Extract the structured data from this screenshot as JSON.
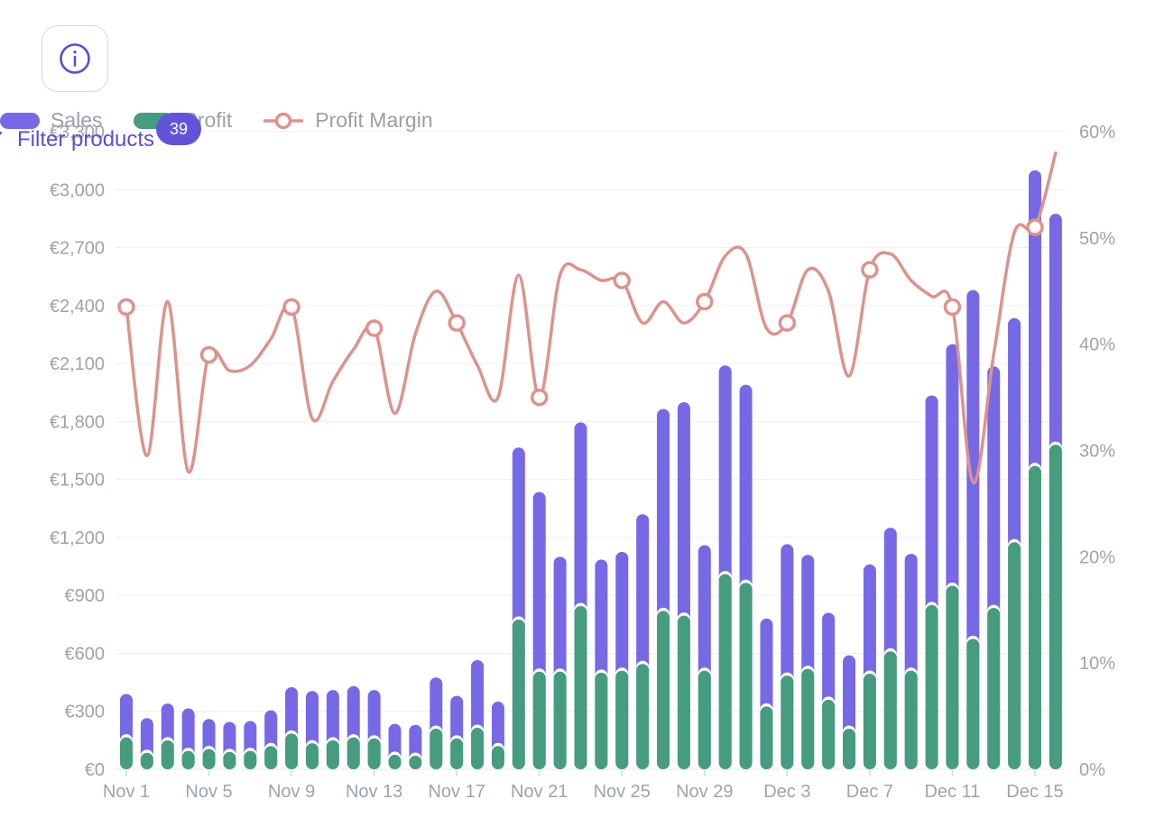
{
  "header": {
    "info_button": {
      "icon": "info-icon"
    },
    "legend": {
      "items": [
        {
          "label": "Sales",
          "color": "#7768e6",
          "swatch": "bar"
        },
        {
          "label": "Profit",
          "color": "#469c7e",
          "swatch": "bar"
        },
        {
          "label": "Profit Margin",
          "color": "#dc938d",
          "swatch": "line-marker"
        }
      ]
    },
    "filter": {
      "icon": "funnel-icon",
      "label": "Filter products",
      "badge_count": "39",
      "accent_color": "#5a4dd4",
      "badge_color": "#6254d8"
    }
  },
  "chart_data": {
    "type": "bar+line",
    "title": "",
    "x": [
      "Nov 1",
      "Nov 2",
      "Nov 3",
      "Nov 4",
      "Nov 5",
      "Nov 6",
      "Nov 7",
      "Nov 8",
      "Nov 9",
      "Nov 10",
      "Nov 11",
      "Nov 12",
      "Nov 13",
      "Nov 14",
      "Nov 15",
      "Nov 16",
      "Nov 17",
      "Nov 18",
      "Nov 19",
      "Nov 20",
      "Nov 21",
      "Nov 22",
      "Nov 23",
      "Nov 24",
      "Nov 25",
      "Nov 26",
      "Nov 27",
      "Nov 28",
      "Nov 29",
      "Nov 30",
      "Dec 1",
      "Dec 2",
      "Dec 3",
      "Dec 4",
      "Dec 5",
      "Dec 6",
      "Dec 7",
      "Dec 8",
      "Dec 9",
      "Dec 10",
      "Dec 11",
      "Dec 12",
      "Dec 13",
      "Dec 14",
      "Dec 15",
      "Dec 16"
    ],
    "x_label_every": 4,
    "series": [
      {
        "name": "Sales",
        "type": "bar",
        "axis": "left",
        "unit": "EUR",
        "color": "#7768e6",
        "values": [
          390,
          265,
          340,
          315,
          260,
          245,
          250,
          305,
          425,
          405,
          410,
          430,
          410,
          235,
          230,
          475,
          380,
          565,
          350,
          1665,
          1435,
          1100,
          1795,
          1085,
          1125,
          1320,
          1865,
          1900,
          1160,
          2090,
          1990,
          780,
          1165,
          1110,
          810,
          590,
          1060,
          1250,
          1115,
          1935,
          2200,
          2480,
          2085,
          2335,
          3100,
          2875
        ]
      },
      {
        "name": "Profit",
        "type": "bar",
        "axis": "left",
        "unit": "EUR",
        "color": "#469c7e",
        "values": [
          165,
          85,
          150,
          95,
          105,
          90,
          95,
          120,
          185,
          135,
          150,
          165,
          160,
          75,
          70,
          210,
          160,
          215,
          120,
          775,
          505,
          505,
          845,
          500,
          510,
          545,
          820,
          795,
          510,
          1010,
          965,
          325,
          485,
          520,
          360,
          210,
          495,
          610,
          510,
          850,
          950,
          675,
          835,
          1175,
          1570,
          1680
        ]
      },
      {
        "name": "Profit Margin",
        "type": "line",
        "axis": "right",
        "unit": "%",
        "color": "#dc938d",
        "marker_every": 4,
        "values": [
          43.5,
          29.5,
          44,
          28,
          39,
          37.5,
          38,
          40.5,
          43.5,
          33,
          36.5,
          39.5,
          41.5,
          33.5,
          41,
          45,
          42,
          38,
          35,
          46.5,
          35,
          46.5,
          47,
          46,
          46,
          42,
          44,
          42,
          44,
          48.3,
          48.5,
          41.5,
          42,
          47,
          45,
          37,
          47,
          48.5,
          46,
          44.5,
          43.5,
          27,
          39,
          50.5,
          51,
          58
        ]
      }
    ],
    "left_axis": {
      "min": 0,
      "max": 3300,
      "step": 300,
      "prefix": "€",
      "labels": [
        "€0",
        "€300",
        "€600",
        "€900",
        "€1,200",
        "€1,500",
        "€1,800",
        "€2,100",
        "€2,400",
        "€2,700",
        "€3,000",
        "€3,300"
      ]
    },
    "right_axis": {
      "min": 0,
      "max": 60,
      "step": 10,
      "suffix": "%",
      "labels": [
        "0%",
        "10%",
        "20%",
        "30%",
        "40%",
        "50%",
        "60%"
      ]
    },
    "grid": "horizontal",
    "legend_position": "top"
  }
}
